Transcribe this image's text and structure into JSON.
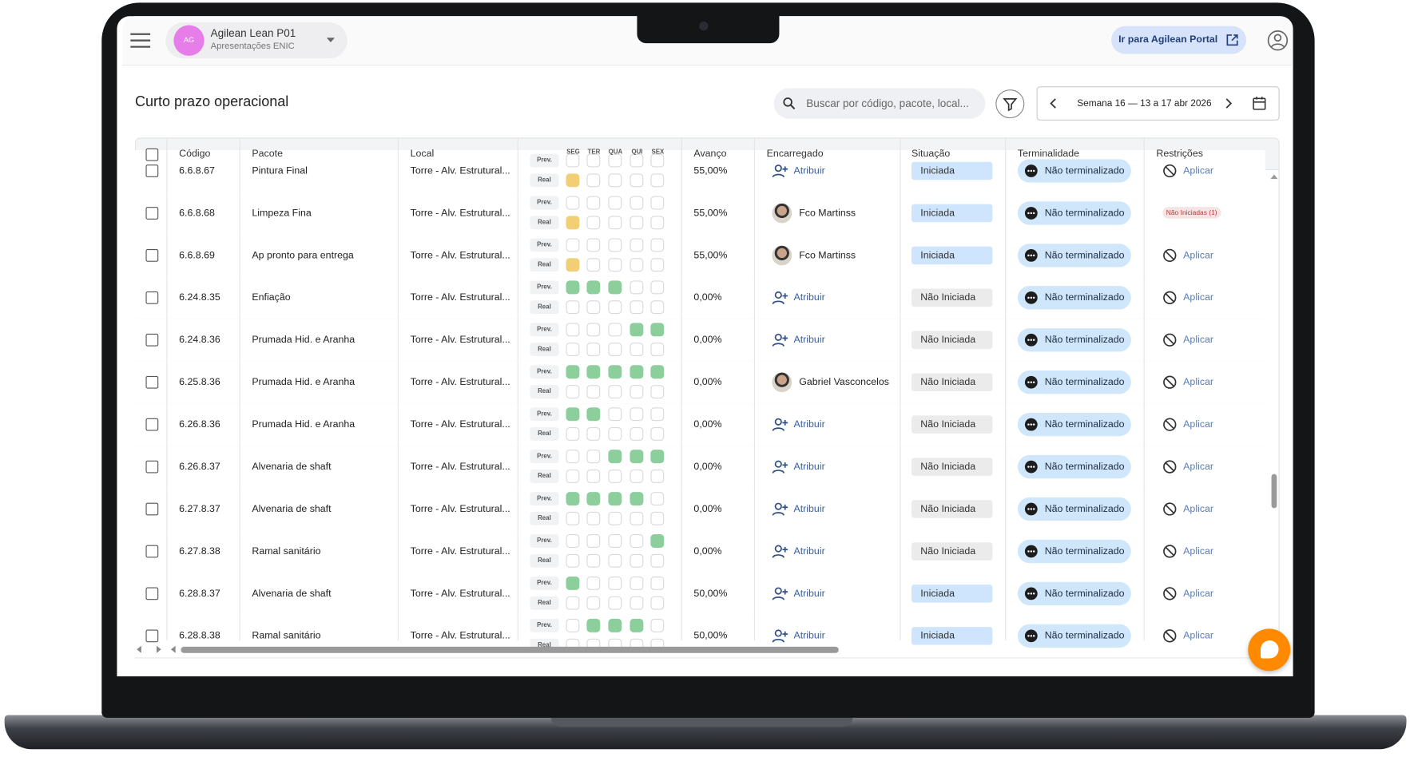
{
  "header": {
    "avatar": "AG",
    "org_name": "Agilean Lean P01",
    "org_subtitle": "Apresentações ENIC",
    "portal_button": "Ir para Agilean Portal"
  },
  "page": {
    "title": "Curto prazo operacional",
    "search_placeholder": "Buscar por código, pacote, local...",
    "week": "Semana 16 — 13 a 17 abr 2026"
  },
  "table": {
    "columns": [
      "Código",
      "Pacote",
      "Local",
      "Avanço",
      "Encarregado",
      "Situação",
      "Terminalidade",
      "Restrições"
    ],
    "days": [
      "SEG",
      "TER",
      "QUA",
      "QUI",
      "SEX"
    ],
    "prev_label": "Prev.",
    "real_label": "Real",
    "rows": [
      {
        "code": "6.6.8.67",
        "package": "Pintura Final",
        "location": "Torre - Alv. Estrutural...",
        "prev": [
          null,
          null,
          null,
          null,
          null
        ],
        "real": [
          "#f2cf74",
          null,
          null,
          null,
          null
        ],
        "progress": "55,00%",
        "assignee": "Atribuir",
        "assigned": false,
        "status": "Iniciada",
        "status_color": "#cfe5fd",
        "terminality": "Não terminalizado",
        "restriction": "Aplicar",
        "restriction_badge": false
      },
      {
        "code": "6.6.8.68",
        "package": "Limpeza Fina",
        "location": "Torre - Alv. Estrutural...",
        "prev": [
          null,
          null,
          null,
          null,
          null
        ],
        "real": [
          "#f2cf74",
          null,
          null,
          null,
          null
        ],
        "progress": "55,00%",
        "assignee": "Fco Martinss",
        "assigned": true,
        "status": "Iniciada",
        "status_color": "#cfe5fd",
        "terminality": "Não terminalizado",
        "restriction": "Não Iniciadas (1)",
        "restriction_badge": true
      },
      {
        "code": "6.6.8.69",
        "package": "Ap pronto para entrega",
        "location": "Torre - Alv. Estrutural...",
        "prev": [
          null,
          null,
          null,
          null,
          null
        ],
        "real": [
          "#f2cf74",
          null,
          null,
          null,
          null
        ],
        "progress": "55,00%",
        "assignee": "Fco Martinss",
        "assigned": true,
        "status": "Iniciada",
        "status_color": "#cfe5fd",
        "terminality": "Não terminalizado",
        "restriction": "Aplicar",
        "restriction_badge": false
      },
      {
        "code": "6.24.8.35",
        "package": "Enfiação",
        "location": "Torre - Alv. Estrutural...",
        "prev": [
          "#8ccf9c",
          "#8ccf9c",
          "#8ccf9c",
          null,
          null
        ],
        "real": [
          null,
          null,
          null,
          null,
          null
        ],
        "progress": "0,00%",
        "assignee": "Atribuir",
        "assigned": false,
        "status": "Não Iniciada",
        "status_color": "#ebebeb",
        "terminality": "Não terminalizado",
        "restriction": "Aplicar",
        "restriction_badge": false
      },
      {
        "code": "6.24.8.36",
        "package": "Prumada Hid. e Aranha",
        "location": "Torre - Alv. Estrutural...",
        "prev": [
          null,
          null,
          null,
          "#8ccf9c",
          "#8ccf9c"
        ],
        "real": [
          null,
          null,
          null,
          null,
          null
        ],
        "progress": "0,00%",
        "assignee": "Atribuir",
        "assigned": false,
        "status": "Não Iniciada",
        "status_color": "#ebebeb",
        "terminality": "Não terminalizado",
        "restriction": "Aplicar",
        "restriction_badge": false
      },
      {
        "code": "6.25.8.36",
        "package": "Prumada Hid. e Aranha",
        "location": "Torre - Alv. Estrutural...",
        "prev": [
          "#8ccf9c",
          "#8ccf9c",
          "#8ccf9c",
          "#8ccf9c",
          "#8ccf9c"
        ],
        "real": [
          null,
          null,
          null,
          null,
          null
        ],
        "progress": "0,00%",
        "assignee": "Gabriel Vasconcelos",
        "assigned": true,
        "status": "Não Iniciada",
        "status_color": "#ebebeb",
        "terminality": "Não terminalizado",
        "restriction": "Aplicar",
        "restriction_badge": false
      },
      {
        "code": "6.26.8.36",
        "package": "Prumada Hid. e Aranha",
        "location": "Torre - Alv. Estrutural...",
        "prev": [
          "#8ccf9c",
          "#8ccf9c",
          null,
          null,
          null
        ],
        "real": [
          null,
          null,
          null,
          null,
          null
        ],
        "progress": "0,00%",
        "assignee": "Atribuir",
        "assigned": false,
        "status": "Não Iniciada",
        "status_color": "#ebebeb",
        "terminality": "Não terminalizado",
        "restriction": "Aplicar",
        "restriction_badge": false
      },
      {
        "code": "6.26.8.37",
        "package": "Alvenaria de shaft",
        "location": "Torre - Alv. Estrutural...",
        "prev": [
          null,
          null,
          "#8ccf9c",
          "#8ccf9c",
          "#8ccf9c"
        ],
        "real": [
          null,
          null,
          null,
          null,
          null
        ],
        "progress": "0,00%",
        "assignee": "Atribuir",
        "assigned": false,
        "status": "Não Iniciada",
        "status_color": "#ebebeb",
        "terminality": "Não terminalizado",
        "restriction": "Aplicar",
        "restriction_badge": false
      },
      {
        "code": "6.27.8.37",
        "package": "Alvenaria de shaft",
        "location": "Torre - Alv. Estrutural...",
        "prev": [
          "#8ccf9c",
          "#8ccf9c",
          "#8ccf9c",
          "#8ccf9c",
          null
        ],
        "real": [
          null,
          null,
          null,
          null,
          null
        ],
        "progress": "0,00%",
        "assignee": "Atribuir",
        "assigned": false,
        "status": "Não Iniciada",
        "status_color": "#ebebeb",
        "terminality": "Não terminalizado",
        "restriction": "Aplicar",
        "restriction_badge": false
      },
      {
        "code": "6.27.8.38",
        "package": "Ramal sanitário",
        "location": "Torre - Alv. Estrutural...",
        "prev": [
          null,
          null,
          null,
          null,
          "#8ccf9c"
        ],
        "real": [
          null,
          null,
          null,
          null,
          null
        ],
        "progress": "0,00%",
        "assignee": "Atribuir",
        "assigned": false,
        "status": "Não Iniciada",
        "status_color": "#ebebeb",
        "terminality": "Não terminalizado",
        "restriction": "Aplicar",
        "restriction_badge": false
      },
      {
        "code": "6.28.8.37",
        "package": "Alvenaria de shaft",
        "location": "Torre - Alv. Estrutural...",
        "prev": [
          "#8ccf9c",
          null,
          null,
          null,
          null
        ],
        "real": [
          null,
          null,
          null,
          null,
          null
        ],
        "progress": "50,00%",
        "assignee": "Atribuir",
        "assigned": false,
        "status": "Iniciada",
        "status_color": "#cfe5fd",
        "terminality": "Não terminalizado",
        "restriction": "Aplicar",
        "restriction_badge": false
      },
      {
        "code": "6.28.8.38",
        "package": "Ramal sanitário",
        "location": "Torre - Alv. Estrutural...",
        "prev": [
          null,
          "#8ccf9c",
          "#8ccf9c",
          "#8ccf9c",
          null
        ],
        "real": [
          null,
          null,
          null,
          null,
          null
        ],
        "progress": "50,00%",
        "assignee": "Atribuir",
        "assigned": false,
        "status": "Iniciada",
        "status_color": "#cfe5fd",
        "terminality": "Não terminalizado",
        "restriction": "Aplicar",
        "restriction_badge": false
      }
    ]
  }
}
